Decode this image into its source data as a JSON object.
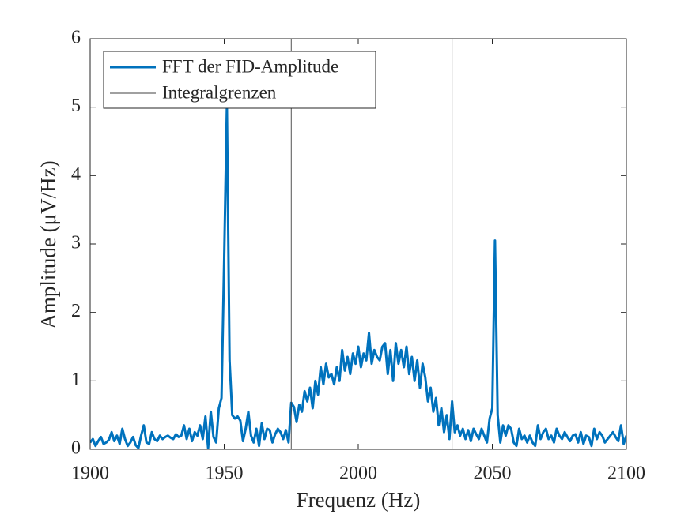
{
  "chart_data": {
    "type": "line",
    "xlabel": "Frequenz (Hz)",
    "ylabel": "Amplitude (μV/Hz)",
    "xlim": [
      1900,
      2100
    ],
    "xticks": [
      1900,
      1950,
      2000,
      2050,
      2100
    ],
    "ylim": [
      0,
      6
    ],
    "yticks": [
      0,
      1,
      2,
      3,
      4,
      5,
      6
    ],
    "legend": "upper left",
    "x": [
      1900,
      1901,
      1902,
      1903,
      1904,
      1905,
      1906,
      1907,
      1908,
      1909,
      1910,
      1911,
      1912,
      1913,
      1914,
      1915,
      1916,
      1917,
      1918,
      1919,
      1920,
      1921,
      1922,
      1923,
      1924,
      1925,
      1926,
      1927,
      1928,
      1929,
      1930,
      1931,
      1932,
      1933,
      1934,
      1935,
      1936,
      1937,
      1938,
      1939,
      1940,
      1941,
      1942,
      1943,
      1944,
      1945,
      1946,
      1947,
      1948,
      1949,
      1950,
      1951,
      1952,
      1953,
      1954,
      1955,
      1956,
      1957,
      1958,
      1959,
      1960,
      1961,
      1962,
      1963,
      1964,
      1965,
      1966,
      1967,
      1968,
      1969,
      1970,
      1971,
      1972,
      1973,
      1974,
      1975,
      1976,
      1977,
      1978,
      1979,
      1980,
      1981,
      1982,
      1983,
      1984,
      1985,
      1986,
      1987,
      1988,
      1989,
      1990,
      1991,
      1992,
      1993,
      1994,
      1995,
      1996,
      1997,
      1998,
      1999,
      2000,
      2001,
      2002,
      2003,
      2004,
      2005,
      2006,
      2007,
      2008,
      2009,
      2010,
      2011,
      2012,
      2013,
      2014,
      2015,
      2016,
      2017,
      2018,
      2019,
      2020,
      2021,
      2022,
      2023,
      2024,
      2025,
      2026,
      2027,
      2028,
      2029,
      2030,
      2031,
      2032,
      2033,
      2034,
      2035,
      2036,
      2037,
      2038,
      2039,
      2040,
      2041,
      2042,
      2043,
      2044,
      2045,
      2046,
      2047,
      2048,
      2049,
      2050,
      2051,
      2052,
      2053,
      2054,
      2055,
      2056,
      2057,
      2058,
      2059,
      2060,
      2061,
      2062,
      2063,
      2064,
      2065,
      2066,
      2067,
      2068,
      2069,
      2070,
      2071,
      2072,
      2073,
      2074,
      2075,
      2076,
      2077,
      2078,
      2079,
      2080,
      2081,
      2082,
      2083,
      2084,
      2085,
      2086,
      2087,
      2088,
      2089,
      2090,
      2091,
      2092,
      2093,
      2094,
      2095,
      2096,
      2097,
      2098,
      2099,
      2100
    ],
    "series": [
      {
        "name": "FFT der FID-Amplitude",
        "color": "#0072bd",
        "values": [
          0.1,
          0.15,
          0.05,
          0.12,
          0.18,
          0.08,
          0.1,
          0.14,
          0.25,
          0.12,
          0.2,
          0.08,
          0.3,
          0.15,
          0.05,
          0.1,
          0.18,
          0.06,
          0.02,
          0.2,
          0.35,
          0.1,
          0.08,
          0.25,
          0.15,
          0.12,
          0.2,
          0.15,
          0.18,
          0.2,
          0.17,
          0.15,
          0.22,
          0.18,
          0.2,
          0.35,
          0.15,
          0.3,
          0.12,
          0.25,
          0.2,
          0.35,
          0.15,
          0.48,
          0.02,
          0.55,
          0.18,
          0.1,
          0.6,
          0.75,
          2.8,
          5.0,
          1.3,
          0.5,
          0.45,
          0.48,
          0.42,
          0.12,
          0.3,
          0.55,
          0.2,
          0.1,
          0.3,
          0.05,
          0.38,
          0.15,
          0.3,
          0.28,
          0.1,
          0.22,
          0.3,
          0.25,
          0.15,
          0.28,
          0.1,
          0.68,
          0.62,
          0.4,
          0.65,
          0.55,
          0.85,
          0.7,
          0.9,
          0.6,
          1.0,
          0.8,
          1.2,
          0.95,
          1.25,
          1.05,
          1.1,
          0.95,
          1.2,
          1.0,
          1.45,
          1.15,
          1.35,
          1.1,
          1.4,
          1.25,
          1.5,
          1.2,
          1.4,
          1.3,
          1.7,
          1.25,
          1.45,
          1.35,
          1.3,
          1.5,
          1.55,
          1.1,
          1.45,
          1.0,
          1.55,
          1.25,
          1.45,
          1.2,
          1.5,
          1.1,
          1.35,
          1.0,
          1.3,
          0.9,
          1.25,
          1.05,
          0.7,
          0.9,
          0.55,
          0.75,
          0.35,
          0.6,
          0.25,
          0.5,
          0.15,
          0.7,
          0.25,
          0.35,
          0.2,
          0.3,
          0.15,
          0.28,
          0.12,
          0.3,
          0.22,
          0.15,
          0.3,
          0.2,
          0.1,
          0.45,
          0.6,
          3.05,
          0.5,
          0.1,
          0.35,
          0.2,
          0.35,
          0.3,
          0.1,
          0.05,
          0.3,
          0.15,
          0.2,
          0.1,
          0.2,
          0.1,
          0.05,
          0.35,
          0.15,
          0.25,
          0.3,
          0.15,
          0.2,
          0.1,
          0.3,
          0.2,
          0.15,
          0.25,
          0.18,
          0.12,
          0.2,
          0.22,
          0.1,
          0.25,
          0.08,
          0.2,
          0.18,
          0.05,
          0.3,
          0.15,
          0.25,
          0.2,
          0.1,
          0.15,
          0.2,
          0.25,
          0.18,
          0.12,
          0.35,
          0.08,
          0.2
        ]
      },
      {
        "name": "Integralgrenzen",
        "color": "#404040",
        "kind": "vline",
        "x": [
          1975,
          2035
        ]
      }
    ]
  }
}
